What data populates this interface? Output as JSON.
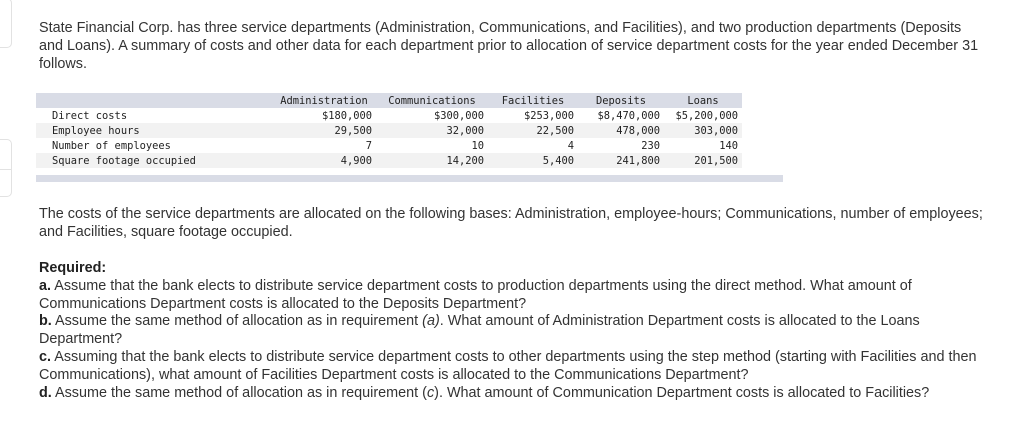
{
  "intro": "State Financial Corp. has three service departments (Administration, Communications, and Facilities), and two production departments (Deposits and Loans). A summary of costs and other data for each department prior to allocation of service department costs for the year ended December 31 follows.",
  "table": {
    "headers": [
      "",
      "Administration",
      "Communications",
      "Facilities",
      "Deposits",
      "Loans"
    ],
    "rows": [
      {
        "label": "Direct costs",
        "values": [
          "$180,000",
          "$300,000",
          "$253,000",
          "$8,470,000",
          "$5,200,000"
        ]
      },
      {
        "label": "Employee hours",
        "values": [
          "29,500",
          "32,000",
          "22,500",
          "478,000",
          "303,000"
        ]
      },
      {
        "label": "Number of employees",
        "values": [
          "7",
          "10",
          "4",
          "230",
          "140"
        ]
      },
      {
        "label": "Square footage occupied",
        "values": [
          "4,900",
          "14,200",
          "5,400",
          "241,800",
          "201,500"
        ]
      }
    ]
  },
  "bases": "The costs of the service departments are allocated on the following bases: Administration, employee-hours; Communications, number of employees; and Facilities, square footage occupied.",
  "required": {
    "heading": "Required:",
    "items": [
      {
        "letter": "a.",
        "pre": "Assume that the bank elects to distribute service department costs to production departments using the direct method. What amount of Communications Department costs is allocated to the Deposits Department?",
        "ref": "",
        "post": ""
      },
      {
        "letter": "b.",
        "pre": "Assume the same method of allocation as in requirement ",
        "ref": "(a)",
        "post": ". What amount of Administration Department costs is allocated to the Loans Department?"
      },
      {
        "letter": "c.",
        "pre": "Assuming that the bank elects to distribute service department costs to other departments using the step method (starting with Facilities and then Communications), what amount of Facilities Department costs is allocated to the Communications Department?",
        "ref": "",
        "post": ""
      },
      {
        "letter": "d.",
        "pre": "Assume the same method of allocation as in requirement (",
        "ref": "c",
        "post": "). What amount of Communication Department costs is allocated to Facilities?"
      }
    ]
  }
}
